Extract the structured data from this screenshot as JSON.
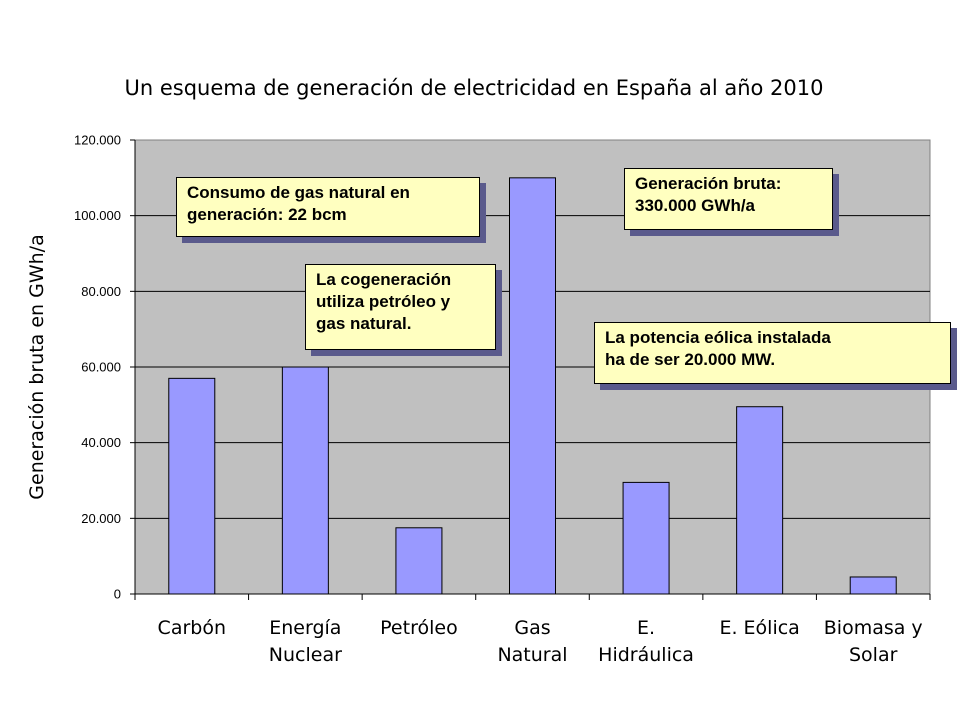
{
  "chart_data": {
    "type": "bar",
    "title": "Un esquema de generación de electricidad en España al año 2010",
    "ylabel": "Generación bruta en GWh/a",
    "xlabel": "",
    "ylim": [
      0,
      120000
    ],
    "yticks": [
      "0",
      "20.000",
      "40.000",
      "60.000",
      "80.000",
      "100.000",
      "120.000"
    ],
    "categories": [
      [
        "Carbón"
      ],
      [
        "Energía",
        "Nuclear"
      ],
      [
        "Petróleo"
      ],
      [
        "Gas",
        "Natural"
      ],
      [
        "E.",
        "Hidráulica"
      ],
      [
        "E. Eólica"
      ],
      [
        "Biomasa y",
        "Solar"
      ]
    ],
    "values": [
      57000,
      60000,
      17500,
      110000,
      29500,
      49500,
      4500
    ],
    "grid": true,
    "colors": {
      "bar": "#9999ff",
      "plot_bg": "#c0c0c0",
      "note_bg": "#ffffc0"
    },
    "annotations": [
      [
        "Consumo de gas natural en",
        "generación: 22 bcm"
      ],
      [
        "Generación bruta:",
        "330.000 GWh/a"
      ],
      [
        "La cogeneración",
        "utiliza petróleo y",
        "gas natural."
      ],
      [
        "La potencia eólica instalada",
        "ha de ser 20.000 MW."
      ]
    ]
  }
}
